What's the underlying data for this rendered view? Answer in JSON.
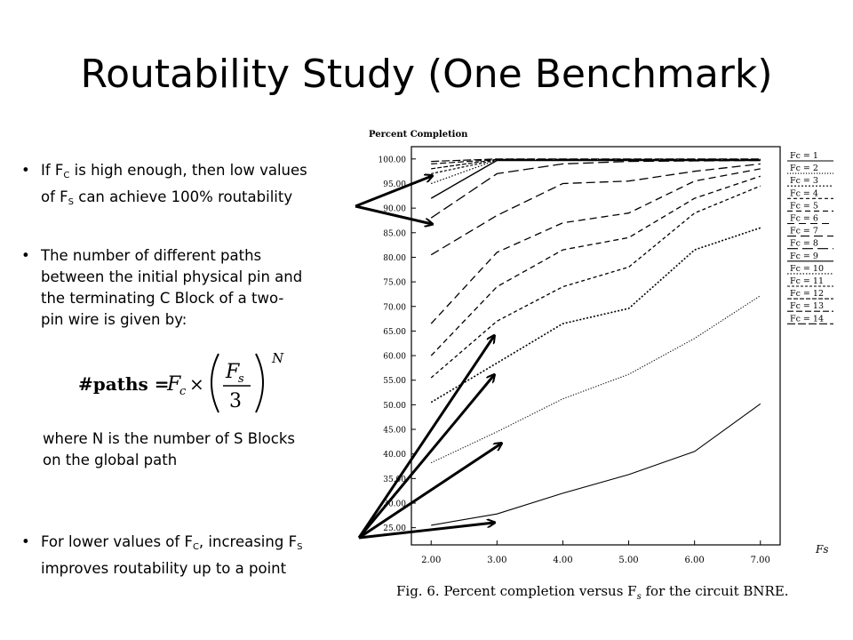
{
  "slide": {
    "title": "Routability Study (One Benchmark)",
    "bullet1": {
      "a": "If F",
      "a_sub": "C",
      "b": " is high enough, then low values",
      "c": "of F",
      "c_sub": "S",
      "d": " can achieve 100% routability"
    },
    "bullet2": {
      "lines": [
        "The number of different paths",
        "between the initial physical pin and",
        "the terminating C Block of a two-",
        "pin wire is given by:"
      ]
    },
    "formula": {
      "lhs": "#paths = ",
      "fc": "F",
      "fc_sub": "c",
      "times": "×",
      "fs": "F",
      "fs_sub": "s",
      "den": "3",
      "exp": "N"
    },
    "where": [
      "where N is the number of S Blocks",
      "on the global path"
    ],
    "bullet3": {
      "a": "For lower values of F",
      "a_sub": "C",
      "b": ", increasing F",
      "b_sub": "S",
      "c": "improves routability up to a point"
    },
    "bullet_glyph": "•"
  },
  "chart_data": {
    "type": "line",
    "title": "Percent Completion",
    "xlabel": "Fs",
    "caption": "Fig. 6.    Percent completion versus F",
    "caption_sub": "s",
    "caption_end": " for the circuit BNRE.",
    "x": [
      2,
      3,
      4,
      5,
      6,
      7
    ],
    "x_tick_labels": [
      "2.00",
      "3.00",
      "4.00",
      "5.00",
      "6.00",
      "7.00"
    ],
    "xlim": [
      1.7,
      7.3
    ],
    "y_ticks": [
      25,
      30,
      35,
      40,
      45,
      50,
      55,
      60,
      65,
      70,
      75,
      80,
      85,
      90,
      95,
      100
    ],
    "y_tick_labels": [
      "25.00",
      "30.00",
      "35.00",
      "40.00",
      "45.00",
      "50.00",
      "55.00",
      "60.00",
      "65.00",
      "70.00",
      "75.00",
      "80.00",
      "85.00",
      "90.00",
      "95.00",
      "100.00"
    ],
    "ylim": [
      21.5,
      102.5
    ],
    "legend_position": "right",
    "series": [
      {
        "name": "Fc = 1",
        "dash": "",
        "width": 1.1,
        "values": [
          25.5,
          27.8,
          32,
          35.8,
          40.5,
          50.2
        ]
      },
      {
        "name": "Fc = 2",
        "dash": "1.2,1.8",
        "width": 1.1,
        "values": [
          38.2,
          44.5,
          51.2,
          56.2,
          63.5,
          72.2
        ]
      },
      {
        "name": "Fc = 3",
        "dash": "2,2",
        "width": 1.6,
        "values": [
          50.5,
          58.5,
          66.5,
          69.6,
          81.5,
          86
        ]
      },
      {
        "name": "Fc = 4",
        "dash": "4,3",
        "width": 1.3,
        "values": [
          55.5,
          67,
          74,
          78,
          89,
          94.5
        ]
      },
      {
        "name": "Fc = 5",
        "dash": "6,4",
        "width": 1.3,
        "values": [
          60,
          74,
          81.5,
          84,
          92,
          96.5
        ]
      },
      {
        "name": "Fc = 6",
        "dash": "8,5",
        "width": 1.3,
        "values": [
          66.5,
          81,
          87,
          89,
          95.5,
          98
        ]
      },
      {
        "name": "Fc = 7",
        "dash": "10,5",
        "width": 1.3,
        "values": [
          80.5,
          88.5,
          95,
          95.5,
          97.5,
          99
        ]
      },
      {
        "name": "Fc = 8",
        "dash": "12,5",
        "width": 1.3,
        "values": [
          88,
          97,
          99,
          99.5,
          99.6,
          99.7
        ]
      },
      {
        "name": "Fc = 9",
        "dash": "",
        "width": 1.4,
        "values": [
          92,
          99.7,
          99.7,
          99.7,
          99.7,
          99.7
        ]
      },
      {
        "name": "Fc = 10",
        "dash": "1.5,2",
        "width": 1.2,
        "values": [
          95,
          99.8,
          99.8,
          99.8,
          99.8,
          99.8
        ]
      },
      {
        "name": "Fc = 11",
        "dash": "3,2",
        "width": 1.2,
        "values": [
          97,
          99.8,
          99.8,
          99.8,
          99.8,
          99.8
        ]
      },
      {
        "name": "Fc = 12",
        "dash": "5,2",
        "width": 1.2,
        "values": [
          98,
          99.9,
          99.9,
          99.9,
          99.9,
          99.9
        ]
      },
      {
        "name": "Fc = 13",
        "dash": "7,3",
        "width": 1.2,
        "values": [
          99,
          99.9,
          99.9,
          99.9,
          99.9,
          99.9
        ]
      },
      {
        "name": "Fc = 14",
        "dash": "9,3",
        "width": 1.2,
        "values": [
          99.5,
          100,
          100,
          100,
          100,
          100
        ]
      }
    ],
    "grid": false
  }
}
